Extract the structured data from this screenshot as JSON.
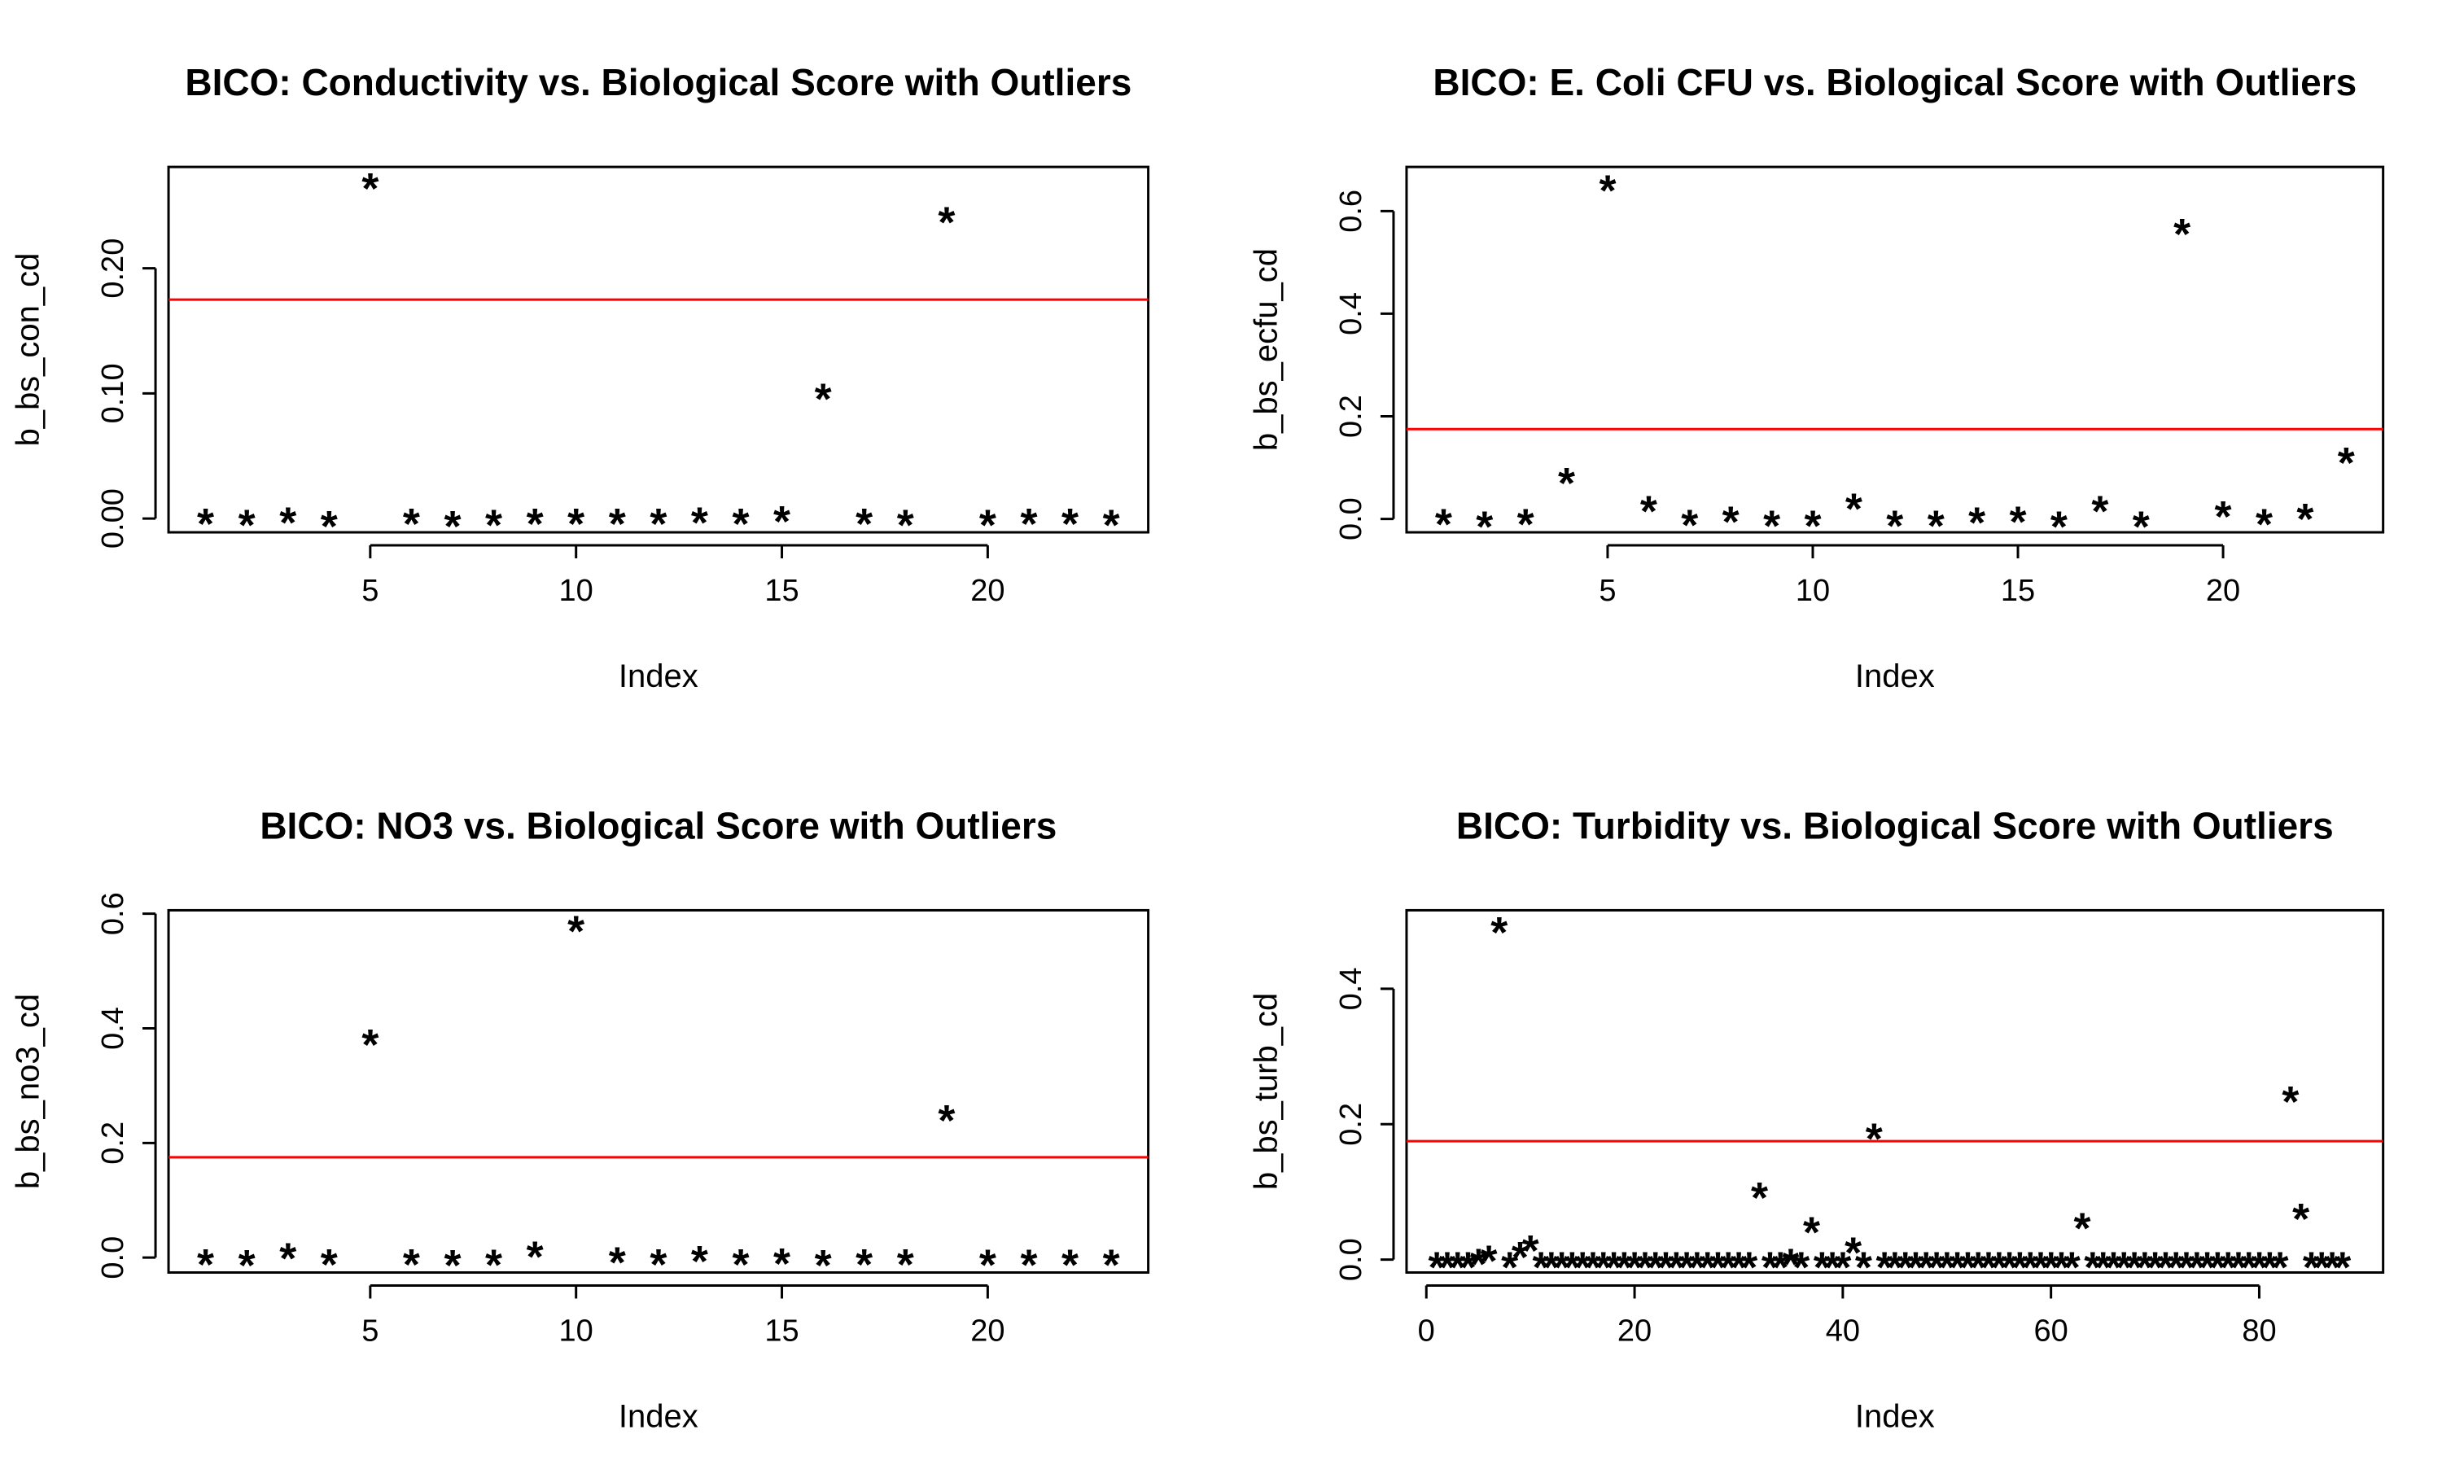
{
  "chart_data": [
    {
      "type": "scatter",
      "title": "BICO: Conductivity vs. Biological Score with Outliers",
      "xlabel": "Index",
      "ylabel": "b_bs_con_cd",
      "marker": "*",
      "xlim": [
        0.1,
        23.9
      ],
      "ylim": [
        -0.011,
        0.281
      ],
      "xticks": [
        5,
        10,
        15,
        20
      ],
      "yticks": [
        0.0,
        0.1,
        0.2
      ],
      "ytick_labels": [
        "0.00",
        "0.10",
        "0.20"
      ],
      "x": [
        1,
        2,
        3,
        4,
        5,
        6,
        7,
        8,
        9,
        10,
        11,
        12,
        13,
        14,
        15,
        16,
        17,
        18,
        19,
        20,
        21,
        22,
        23
      ],
      "y": [
        0.002,
        0.001,
        0.003,
        0.0,
        0.27,
        0.002,
        0.0,
        0.001,
        0.002,
        0.002,
        0.002,
        0.002,
        0.003,
        0.002,
        0.004,
        0.102,
        0.002,
        0.001,
        0.243,
        0.001,
        0.002,
        0.002,
        0.001
      ],
      "hline": {
        "y": 0.175,
        "color": "#ff0000"
      }
    },
    {
      "type": "scatter",
      "title": "BICO: E. Coli CFU vs. Biological Score with Outliers",
      "xlabel": "Index",
      "ylabel": "b_bs_ecfu_cd",
      "marker": "*",
      "xlim": [
        0.1,
        23.9
      ],
      "ylim": [
        -0.026,
        0.686
      ],
      "xticks": [
        5,
        10,
        15,
        20
      ],
      "yticks": [
        0.0,
        0.2,
        0.4,
        0.6
      ],
      "ytick_labels": [
        "0.0",
        "0.2",
        "0.4",
        "0.6"
      ],
      "x": [
        1,
        2,
        3,
        4,
        5,
        6,
        7,
        8,
        9,
        10,
        11,
        12,
        13,
        14,
        15,
        16,
        17,
        18,
        19,
        20,
        21,
        22,
        23
      ],
      "y": [
        0.005,
        0.0,
        0.005,
        0.085,
        0.655,
        0.03,
        0.003,
        0.01,
        0.002,
        0.002,
        0.035,
        0.002,
        0.002,
        0.008,
        0.01,
        0.0,
        0.03,
        0.0,
        0.57,
        0.02,
        0.005,
        0.015,
        0.125
      ],
      "hline": {
        "y": 0.175,
        "color": "#ff0000"
      }
    },
    {
      "type": "scatter",
      "title": "BICO: NO3 vs. Biological Score with Outliers",
      "xlabel": "Index",
      "ylabel": "b_bs_no3_cd",
      "marker": "*",
      "xlim": [
        0.1,
        23.9
      ],
      "ylim": [
        -0.026,
        0.606
      ],
      "xticks": [
        5,
        10,
        15,
        20
      ],
      "yticks": [
        0.0,
        0.2,
        0.4,
        0.6
      ],
      "ytick_labels": [
        "0.0",
        "0.2",
        "0.4",
        "0.6"
      ],
      "x": [
        1,
        2,
        3,
        4,
        5,
        6,
        7,
        8,
        9,
        10,
        11,
        12,
        13,
        14,
        15,
        16,
        17,
        18,
        19,
        20,
        21,
        22,
        23
      ],
      "y": [
        0.002,
        0.0,
        0.012,
        0.002,
        0.385,
        0.002,
        0.0,
        0.001,
        0.015,
        0.583,
        0.005,
        0.002,
        0.007,
        0.002,
        0.003,
        0.0,
        0.002,
        0.002,
        0.253,
        0.001,
        0.001,
        0.001,
        0.001
      ],
      "hline": {
        "y": 0.175,
        "color": "#ff0000"
      }
    },
    {
      "type": "scatter",
      "title": "BICO: Turbidity vs. Biological Score with Outliers",
      "xlabel": "Index",
      "ylabel": "b_bs_turb_cd",
      "marker": "*",
      "xlim": [
        -1.9,
        91.9
      ],
      "ylim": [
        -0.019,
        0.516
      ],
      "xticks": [
        0,
        20,
        40,
        60,
        80
      ],
      "yticks": [
        0.0,
        0.2,
        0.4
      ],
      "ytick_labels": [
        "0.0",
        "0.2",
        "0.4"
      ],
      "x": [
        1,
        2,
        3,
        4,
        5,
        6,
        7,
        8,
        9,
        10,
        11,
        12,
        13,
        14,
        15,
        16,
        17,
        18,
        19,
        20,
        21,
        22,
        23,
        24,
        25,
        26,
        27,
        28,
        29,
        30,
        31,
        32,
        33,
        34,
        35,
        36,
        37,
        38,
        39,
        40,
        41,
        42,
        43,
        44,
        45,
        46,
        47,
        48,
        49,
        50,
        51,
        52,
        53,
        54,
        55,
        56,
        57,
        58,
        59,
        60,
        61,
        62,
        63,
        64,
        65,
        66,
        67,
        68,
        69,
        70,
        71,
        72,
        73,
        74,
        75,
        76,
        77,
        78,
        79,
        80,
        81,
        82,
        83,
        84,
        85,
        86,
        87,
        88
      ],
      "y": [
        0.0,
        0.0,
        0.0,
        0.0,
        0.005,
        0.01,
        0.495,
        0.0,
        0.015,
        0.025,
        0.0,
        0.0,
        0.0,
        0.0,
        0.0,
        0.0,
        0.0,
        0.0,
        0.0,
        0.0,
        0.0,
        0.0,
        0.0,
        0.0,
        0.0,
        0.0,
        0.0,
        0.0,
        0.0,
        0.0,
        0.0,
        0.103,
        0.0,
        0.0,
        0.005,
        0.0,
        0.052,
        0.0,
        0.0,
        0.0,
        0.022,
        0.0,
        0.19,
        0.0,
        0.0,
        0.0,
        0.0,
        0.0,
        0.0,
        0.0,
        0.0,
        0.0,
        0.0,
        0.0,
        0.0,
        0.0,
        0.0,
        0.0,
        0.0,
        0.0,
        0.0,
        0.0,
        0.058,
        0.0,
        0.0,
        0.0,
        0.0,
        0.0,
        0.0,
        0.0,
        0.0,
        0.0,
        0.0,
        0.0,
        0.0,
        0.0,
        0.0,
        0.0,
        0.0,
        0.0,
        0.0,
        0.0,
        0.245,
        0.072,
        0.0,
        0.0,
        0.0,
        0.0
      ],
      "hline": {
        "y": 0.175,
        "color": "#ff0000"
      }
    }
  ]
}
